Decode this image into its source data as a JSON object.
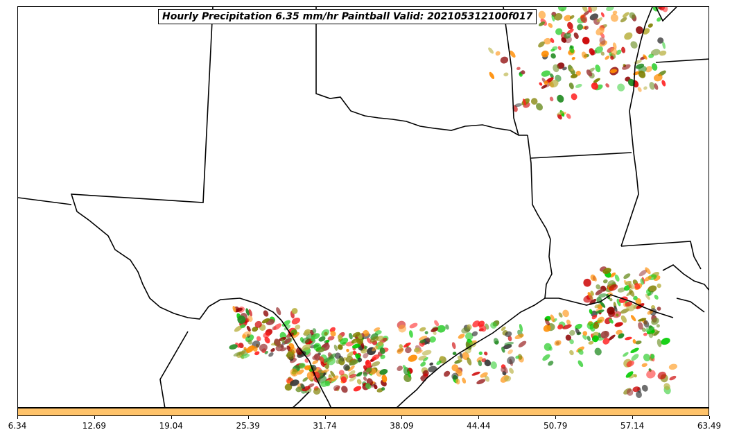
{
  "title": "Hourly Precipitation 6.35 mm/hr Paintball Valid: 202105312100f017",
  "colorbar": {
    "color": "#ffc36a",
    "ticks": [
      "6.34",
      "12.69",
      "19.04",
      "25.39",
      "31.74",
      "38.09",
      "44.44",
      "50.79",
      "57.14",
      "63.49"
    ]
  },
  "colors": {
    "member_palette": [
      "#ff2020",
      "#cc0000",
      "#8b0000",
      "#ff8c00",
      "#ffa030",
      "#6b8e23",
      "#808000",
      "#228b22",
      "#00cc00",
      "#3cd03c",
      "#b8b040",
      "#303030",
      "#a04040"
    ]
  }
}
